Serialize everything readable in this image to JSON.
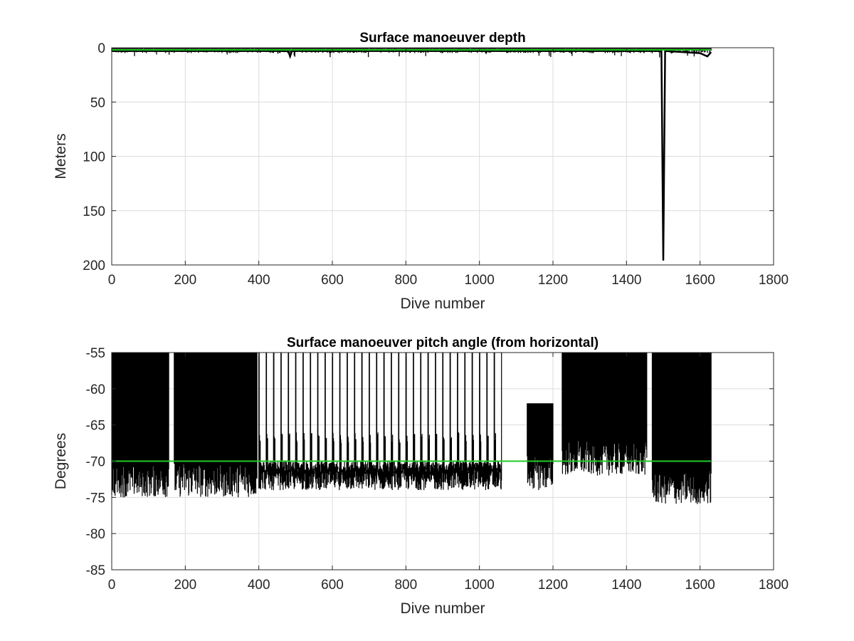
{
  "colors": {
    "data": "#000000",
    "reference": "#22cc22",
    "grid": "#dcdcdc",
    "axes": "#262626",
    "background": "#ffffff"
  },
  "chart_data": [
    {
      "type": "line",
      "title": "Surface manoeuver depth",
      "xlabel": "Dive number",
      "ylabel": "Meters",
      "xlim": [
        0,
        1800
      ],
      "ylim": [
        0,
        200
      ],
      "y_reversed": true,
      "grid": true,
      "xticks": [
        "0",
        "200",
        "400",
        "600",
        "800",
        "1000",
        "1200",
        "1400",
        "1600",
        "1800"
      ],
      "yticks": [
        "0",
        "50",
        "100",
        "150",
        "200"
      ],
      "series": [
        {
          "role": "measured",
          "x": [
            0,
            100,
            200,
            300,
            400,
            480,
            485,
            490,
            600,
            800,
            1000,
            1200,
            1400,
            1495,
            1500,
            1505,
            1600,
            1620,
            1630
          ],
          "y": [
            3,
            3,
            3,
            3,
            3,
            3,
            8,
            3,
            3,
            3,
            3,
            3,
            3,
            3,
            196,
            3,
            5,
            8,
            4
          ]
        },
        {
          "role": "reference",
          "x": [
            0,
            1630
          ],
          "y": [
            2,
            2
          ]
        }
      ]
    },
    {
      "type": "line",
      "title": "Surface manoeuver pitch angle (from horizontal)",
      "xlabel": "Dive number",
      "ylabel": "Degrees",
      "xlim": [
        0,
        1800
      ],
      "ylim": [
        -85,
        -55
      ],
      "grid": true,
      "xticks": [
        "0",
        "200",
        "400",
        "600",
        "800",
        "1000",
        "1200",
        "1400",
        "1600",
        "1800"
      ],
      "yticks": [
        "-55",
        "-60",
        "-65",
        "-70",
        "-75",
        "-80",
        "-85"
      ],
      "series": [
        {
          "role": "measured",
          "segments": [
            {
              "from": 0,
              "to": 155,
              "high": -55,
              "low": -75
            },
            {
              "from": 170,
              "to": 395,
              "high": -55,
              "low": -75
            },
            {
              "from": 400,
              "to": 1060,
              "high": -55,
              "low": -74,
              "spikes_every": 20
            },
            {
              "from": 1130,
              "to": 1200,
              "high": -62,
              "low": -74
            },
            {
              "from": 1225,
              "to": 1455,
              "high": -55,
              "low": -72
            },
            {
              "from": 1470,
              "to": 1630,
              "high": -55,
              "low": -76
            }
          ]
        },
        {
          "role": "reference",
          "x": [
            0,
            1630
          ],
          "y": [
            -70,
            -70
          ]
        }
      ]
    }
  ]
}
